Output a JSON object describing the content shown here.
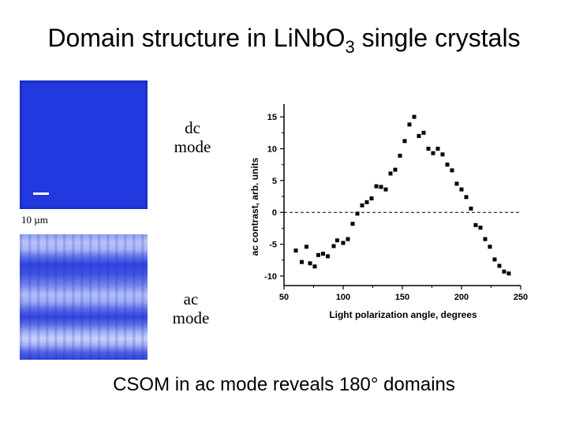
{
  "slide": {
    "title_main": "Domain structure in LiNbO",
    "title_sub": "3",
    "title_end": " single crystals",
    "scale_label": "10 µm",
    "dc_mode_line1": "dc",
    "dc_mode_line2": "mode",
    "ac_mode_line1": "ac",
    "ac_mode_line2": "mode",
    "caption": "CSOM in ac mode reveals 180° domains"
  },
  "chart_data": {
    "type": "scatter",
    "xlabel": "Light polarization angle, degrees",
    "ylabel": "ac contrast, arb. units",
    "xlim": [
      50,
      250
    ],
    "ylim": [
      -11.5,
      17
    ],
    "xticks": [
      50,
      100,
      150,
      200,
      250
    ],
    "yticks": [
      -10,
      -5,
      0,
      5,
      10,
      15
    ],
    "reference_line": {
      "y": 0,
      "style": "dashed"
    },
    "grid": false,
    "marker": "square",
    "x": [
      60,
      65,
      69,
      72,
      76,
      79,
      83,
      87,
      92,
      95,
      100,
      104,
      108,
      112,
      116,
      120,
      124,
      128,
      132,
      136,
      140,
      144,
      148,
      152,
      156,
      160,
      164,
      168,
      172,
      176,
      180,
      184,
      188,
      192,
      196,
      200,
      204,
      208,
      212,
      216,
      220,
      224,
      228,
      232,
      236,
      240
    ],
    "y": [
      -6,
      -7.8,
      -5.4,
      -8,
      -8.5,
      -6.7,
      -6.5,
      -6.9,
      -5.3,
      -4.4,
      -4.8,
      -4.2,
      -1.8,
      -0.2,
      1.1,
      1.6,
      2.2,
      4.1,
      4.0,
      3.6,
      6.1,
      6.7,
      8.9,
      11.2,
      13.8,
      15.0,
      12.0,
      12.5,
      10.0,
      9.3,
      10.0,
      9.1,
      7.5,
      6.6,
      4.5,
      3.6,
      2.4,
      0.6,
      -2.0,
      -2.4,
      -4.2,
      -5.4,
      -7.4,
      -8.4,
      -9.3,
      -9.6
    ]
  }
}
